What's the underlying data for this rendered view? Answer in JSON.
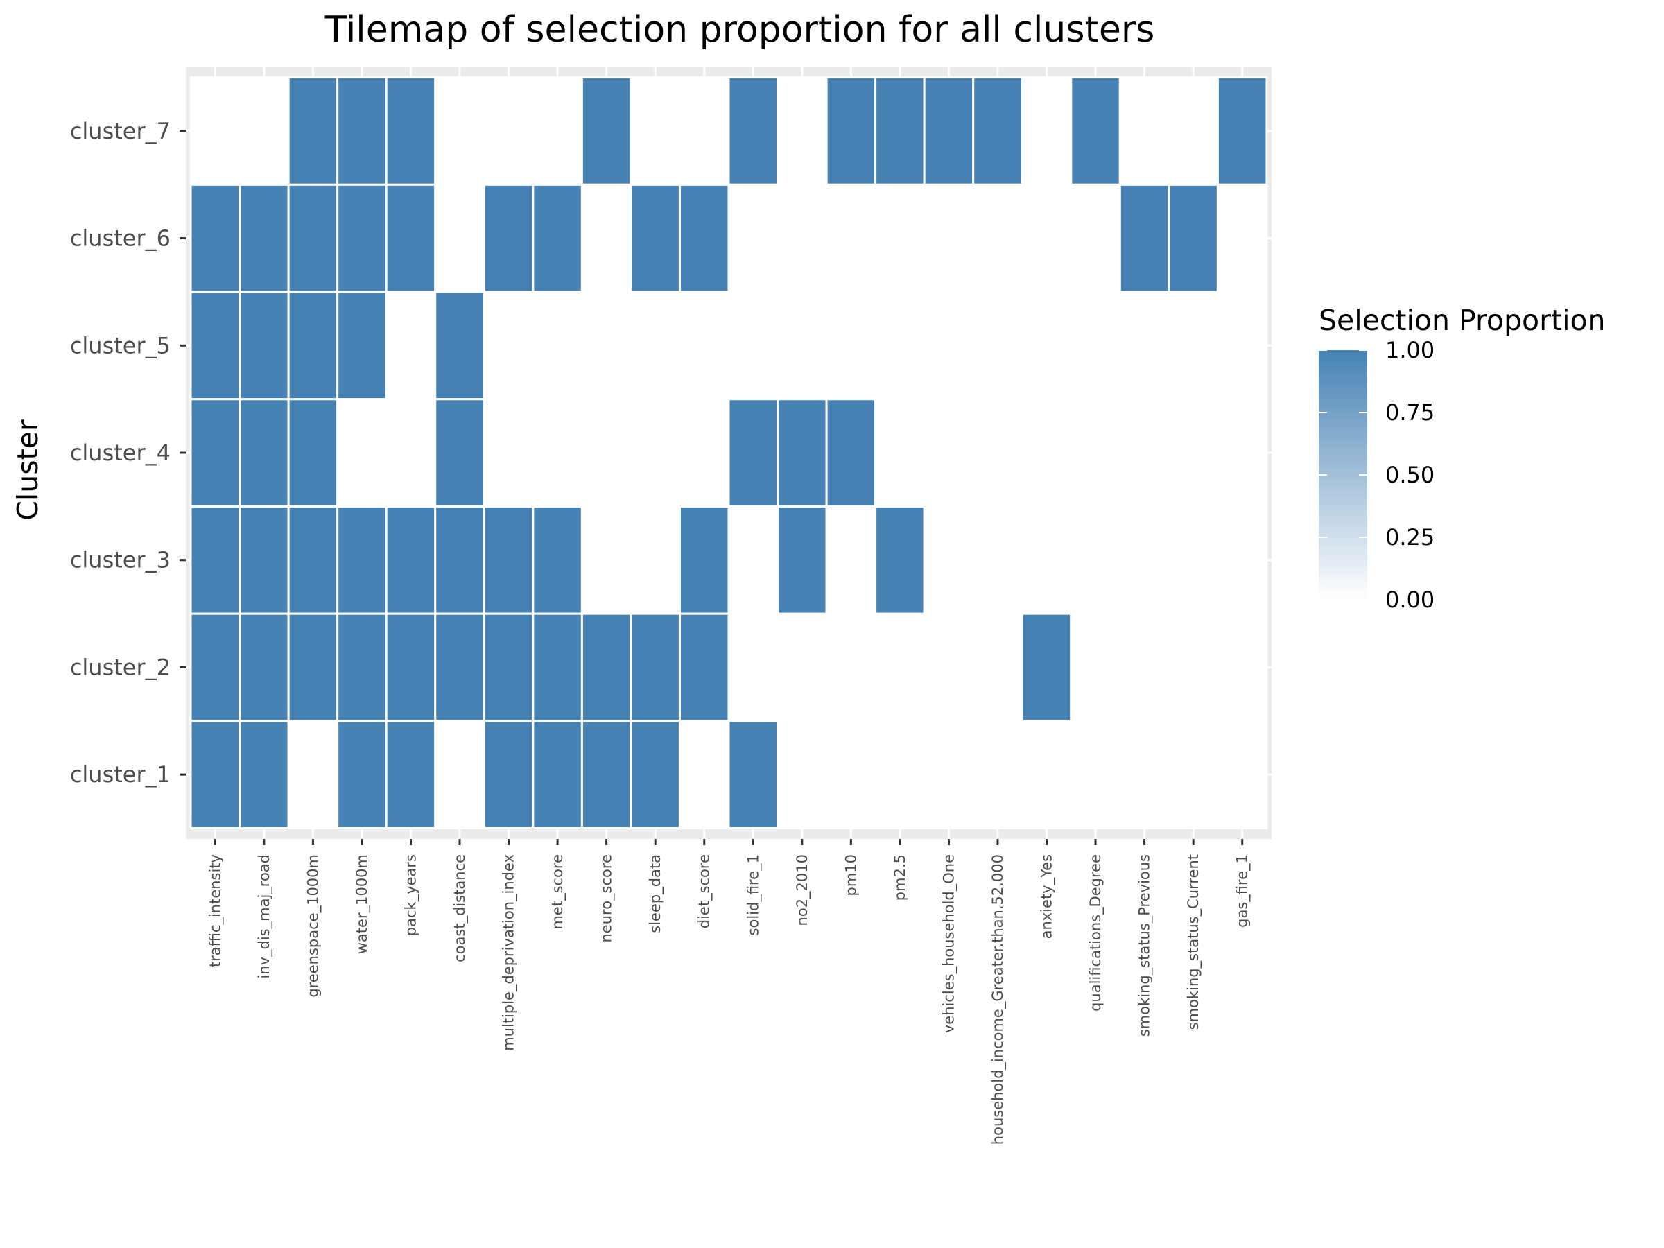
{
  "chart_data": {
    "type": "heatmap",
    "title": "Tilemap of selection proportion for all clusters",
    "xlabel": "",
    "ylabel": "Cluster",
    "x_categories": [
      "traffic_intensity",
      "inv_dis_maj_road",
      "greenspace_1000m",
      "water_1000m",
      "pack_years",
      "coast_distance",
      "multiple_deprivation_index",
      "met_score",
      "neuro_score",
      "sleep_data",
      "diet_score",
      "solid_fire_1",
      "no2_2010",
      "pm10",
      "pm2.5",
      "vehicles_household_One",
      "household_income_Greater.than.52.000",
      "anxiety_Yes",
      "qualifications_Degree",
      "smoking_status_Previous",
      "smoking_status_Current",
      "gas_fire_1"
    ],
    "y_categories": [
      "cluster_1",
      "cluster_2",
      "cluster_3",
      "cluster_4",
      "cluster_5",
      "cluster_6",
      "cluster_7"
    ],
    "values": [
      [
        1,
        1,
        0,
        1,
        1,
        0,
        1,
        1,
        1,
        1,
        0,
        1,
        0,
        0,
        0,
        0,
        0,
        0,
        0,
        0,
        0,
        0
      ],
      [
        1,
        1,
        1,
        1,
        1,
        1,
        1,
        1,
        1,
        1,
        1,
        0,
        0,
        0,
        0,
        0,
        0,
        1,
        0,
        0,
        0,
        0
      ],
      [
        1,
        1,
        1,
        1,
        1,
        1,
        1,
        1,
        0,
        0,
        1,
        0,
        1,
        0,
        1,
        0,
        0,
        0,
        0,
        0,
        0,
        0
      ],
      [
        1,
        1,
        1,
        0,
        0,
        1,
        0,
        0,
        0,
        0,
        0,
        1,
        1,
        1,
        0,
        0,
        0,
        0,
        0,
        0,
        0,
        0
      ],
      [
        1,
        1,
        1,
        1,
        0,
        1,
        0,
        0,
        0,
        0,
        0,
        0,
        0,
        0,
        0,
        0,
        0,
        0,
        0,
        0,
        0,
        0
      ],
      [
        1,
        1,
        1,
        1,
        1,
        0,
        1,
        1,
        0,
        1,
        1,
        0,
        0,
        0,
        0,
        0,
        0,
        0,
        0,
        1,
        1,
        0
      ],
      [
        0,
        0,
        1,
        1,
        1,
        0,
        0,
        0,
        1,
        0,
        0,
        1,
        0,
        1,
        1,
        1,
        1,
        0,
        1,
        0,
        0,
        1
      ]
    ],
    "value_range": [
      0,
      1
    ],
    "grid": true,
    "legend": {
      "title": "Selection Proportion",
      "placement": "right",
      "ticks": [
        "1.00",
        "0.75",
        "0.50",
        "0.25",
        "0.00"
      ],
      "tick_values": [
        1.0,
        0.75,
        0.5,
        0.25,
        0.0
      ]
    },
    "colors": {
      "high": "#4682b4",
      "low": "#ffffff",
      "panel_background": "#ebebeb",
      "grid_line": "#ffffff"
    }
  }
}
